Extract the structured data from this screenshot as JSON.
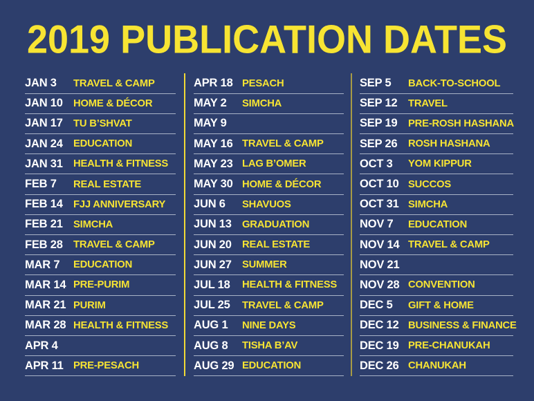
{
  "title": "2019 PUBLICATION DATES",
  "colors": {
    "background": "#2d3e6c",
    "title_yellow": "#f7e433",
    "date_white": "#ffffff",
    "row_line": "#a9b3c7",
    "divider_left": "#f2da36",
    "divider_right": "#a89b45"
  },
  "columns": [
    {
      "rows": [
        {
          "date": "JAN 3",
          "topic": "TRAVEL & CAMP"
        },
        {
          "date": "JAN 10",
          "topic": "HOME & DÉCOR"
        },
        {
          "date": "JAN 17",
          "topic": "TU B’SHVAT"
        },
        {
          "date": "JAN 24",
          "topic": "EDUCATION"
        },
        {
          "date": "JAN 31",
          "topic": "HEALTH & FITNESS"
        },
        {
          "date": "FEB 7",
          "topic": "REAL ESTATE"
        },
        {
          "date": "FEB 14",
          "topic": "FJJ ANNIVERSARY"
        },
        {
          "date": "FEB 21",
          "topic": "SIMCHA"
        },
        {
          "date": "FEB 28",
          "topic": "TRAVEL & CAMP"
        },
        {
          "date": "MAR 7",
          "topic": "EDUCATION"
        },
        {
          "date": "MAR 14",
          "topic": "PRE-PURIM"
        },
        {
          "date": "MAR 21",
          "topic": "PURIM"
        },
        {
          "date": "MAR 28",
          "topic": "HEALTH & FITNESS"
        },
        {
          "date": "APR 4",
          "topic": ""
        },
        {
          "date": "APR 11",
          "topic": "PRE-PESACH"
        }
      ]
    },
    {
      "rows": [
        {
          "date": "APR 18",
          "topic": "PESACH"
        },
        {
          "date": "MAY 2",
          "topic": "SIMCHA"
        },
        {
          "date": "MAY 9",
          "topic": ""
        },
        {
          "date": "MAY 16",
          "topic": "TRAVEL & CAMP"
        },
        {
          "date": "MAY 23",
          "topic": "LAG B’OMER"
        },
        {
          "date": "MAY 30",
          "topic": "HOME & DÉCOR"
        },
        {
          "date": "JUN 6",
          "topic": "SHAVUOS"
        },
        {
          "date": "JUN 13",
          "topic": "GRADUATION"
        },
        {
          "date": "JUN 20",
          "topic": "REAL ESTATE"
        },
        {
          "date": "JUN 27",
          "topic": "SUMMER"
        },
        {
          "date": "JUL 18",
          "topic": "HEALTH & FITNESS"
        },
        {
          "date": "JUL 25",
          "topic": "TRAVEL & CAMP"
        },
        {
          "date": "AUG 1",
          "topic": "NINE DAYS"
        },
        {
          "date": "AUG 8",
          "topic": "TISHA B’AV"
        },
        {
          "date": "AUG 29",
          "topic": "EDUCATION"
        }
      ]
    },
    {
      "rows": [
        {
          "date": "SEP 5",
          "topic": "BACK-TO-SCHOOL"
        },
        {
          "date": "SEP 12",
          "topic": "TRAVEL"
        },
        {
          "date": "SEP 19",
          "topic": "PRE-ROSH HASHANA"
        },
        {
          "date": "SEP 26",
          "topic": "ROSH HASHANA"
        },
        {
          "date": "OCT 3",
          "topic": "YOM KIPPUR"
        },
        {
          "date": "OCT 10",
          "topic": "SUCCOS"
        },
        {
          "date": "OCT 31",
          "topic": "SIMCHA"
        },
        {
          "date": "NOV 7",
          "topic": "EDUCATION"
        },
        {
          "date": "NOV 14",
          "topic": "TRAVEL & CAMP"
        },
        {
          "date": "NOV 21",
          "topic": ""
        },
        {
          "date": "NOV 28",
          "topic": "CONVENTION"
        },
        {
          "date": "DEC 5",
          "topic": "GIFT & HOME"
        },
        {
          "date": "DEC 12",
          "topic": "BUSINESS & FINANCE"
        },
        {
          "date": "DEC 19",
          "topic": "PRE-CHANUKAH"
        },
        {
          "date": "DEC 26",
          "topic": "CHANUKAH"
        }
      ]
    }
  ]
}
